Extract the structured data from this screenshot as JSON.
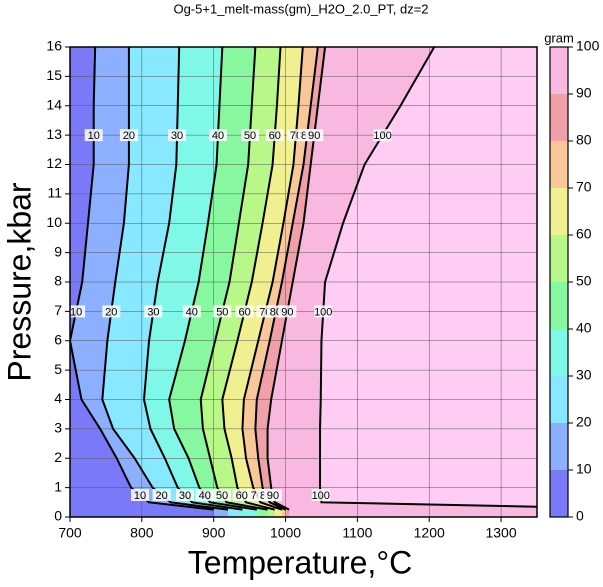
{
  "chart_data": {
    "type": "contour",
    "title": "Og-5+1_melt-mass(gm)_H2O_2.0_PT, dz=2",
    "x_label": "Temperature,°C",
    "y_label": "Pressure,kbar",
    "xlim": [
      700,
      1350
    ],
    "xticks": [
      700,
      800,
      900,
      1000,
      1100,
      1200,
      1300
    ],
    "ylim": [
      0,
      16
    ],
    "yticks": [
      0,
      1,
      2,
      3,
      4,
      5,
      6,
      7,
      8,
      9,
      10,
      11,
      12,
      13,
      14,
      15,
      16
    ],
    "grid": true,
    "colorbar_label": "gram",
    "clim": [
      0,
      100
    ],
    "cticks": [
      0,
      10,
      20,
      30,
      40,
      50,
      60,
      70,
      80,
      90,
      100
    ],
    "colors": [
      "#7a7af8",
      "#8cb0ff",
      "#88e8ff",
      "#80f8e8",
      "#88f8a0",
      "#b8f888",
      "#f0f090",
      "#f8c898",
      "#f0a0a8",
      "#f8b8e0",
      "#ffccf4"
    ],
    "contours": [
      {
        "level": 10,
        "T": [
          735,
          733,
          733,
          725,
          717,
          700,
          716,
          742,
          765,
          785,
          810,
          900
        ],
        "P": [
          16,
          14,
          12,
          10,
          8,
          6,
          4,
          3,
          2,
          1,
          0.5,
          0.25
        ]
      },
      {
        "level": 20,
        "T": [
          782,
          782,
          782,
          775,
          763,
          752,
          745,
          760,
          790,
          815,
          840,
          920
        ],
        "P": [
          16,
          14,
          12,
          10,
          8,
          6,
          4,
          3,
          2,
          1,
          0.5,
          0.25
        ]
      },
      {
        "level": 30,
        "T": [
          852,
          850,
          848,
          838,
          822,
          810,
          803,
          812,
          832,
          850,
          870,
          940
        ],
        "P": [
          16,
          14,
          12,
          10,
          8,
          6,
          4,
          3,
          2,
          1,
          0.5,
          0.25
        ]
      },
      {
        "level": 40,
        "T": [
          912,
          908,
          904,
          892,
          879,
          860,
          838,
          845,
          865,
          880,
          895,
          960
        ],
        "P": [
          16,
          14,
          12,
          10,
          8,
          6,
          4,
          3,
          2,
          1,
          0.5,
          0.25
        ]
      },
      {
        "level": 50,
        "T": [
          958,
          953,
          948,
          935,
          922,
          902,
          882,
          885,
          895,
          905,
          918,
          975
        ],
        "P": [
          16,
          14,
          12,
          10,
          8,
          6,
          4,
          3,
          2,
          1,
          0.5,
          0.25
        ]
      },
      {
        "level": 60,
        "T": [
          993,
          988,
          982,
          968,
          953,
          933,
          912,
          915,
          925,
          933,
          945,
          985
        ],
        "P": [
          16,
          14,
          12,
          10,
          8,
          6,
          4,
          3,
          2,
          1,
          0.5,
          0.25
        ]
      },
      {
        "level": 70,
        "T": [
          1024,
          1018,
          1011,
          997,
          982,
          962,
          942,
          940,
          945,
          955,
          965,
          995
        ],
        "P": [
          16,
          14,
          12,
          10,
          8,
          6,
          4,
          3,
          2,
          1,
          0.5,
          0.25
        ]
      },
      {
        "level": 80,
        "T": [
          1045,
          1035,
          1025,
          1010,
          995,
          978,
          960,
          958,
          962,
          968,
          978,
          1000
        ],
        "P": [
          16,
          14,
          12,
          10,
          8,
          6,
          4,
          3,
          2,
          1,
          0.5,
          0.25
        ]
      },
      {
        "level": 90,
        "T": [
          1055,
          1045,
          1035,
          1025,
          1010,
          995,
          980,
          975,
          975,
          980,
          985,
          1005
        ],
        "P": [
          16,
          14,
          12,
          10,
          8,
          6,
          4,
          3,
          2,
          1,
          0.5,
          0.25
        ]
      },
      {
        "level": 100,
        "T": [
          1207,
          1160,
          1110,
          1080,
          1055,
          1050,
          1049,
          1048,
          1048,
          1048,
          1050,
          1350
        ],
        "P": [
          16,
          14,
          12,
          10,
          8,
          6,
          4,
          3,
          2,
          1,
          0.5,
          0.35
        ]
      }
    ]
  }
}
